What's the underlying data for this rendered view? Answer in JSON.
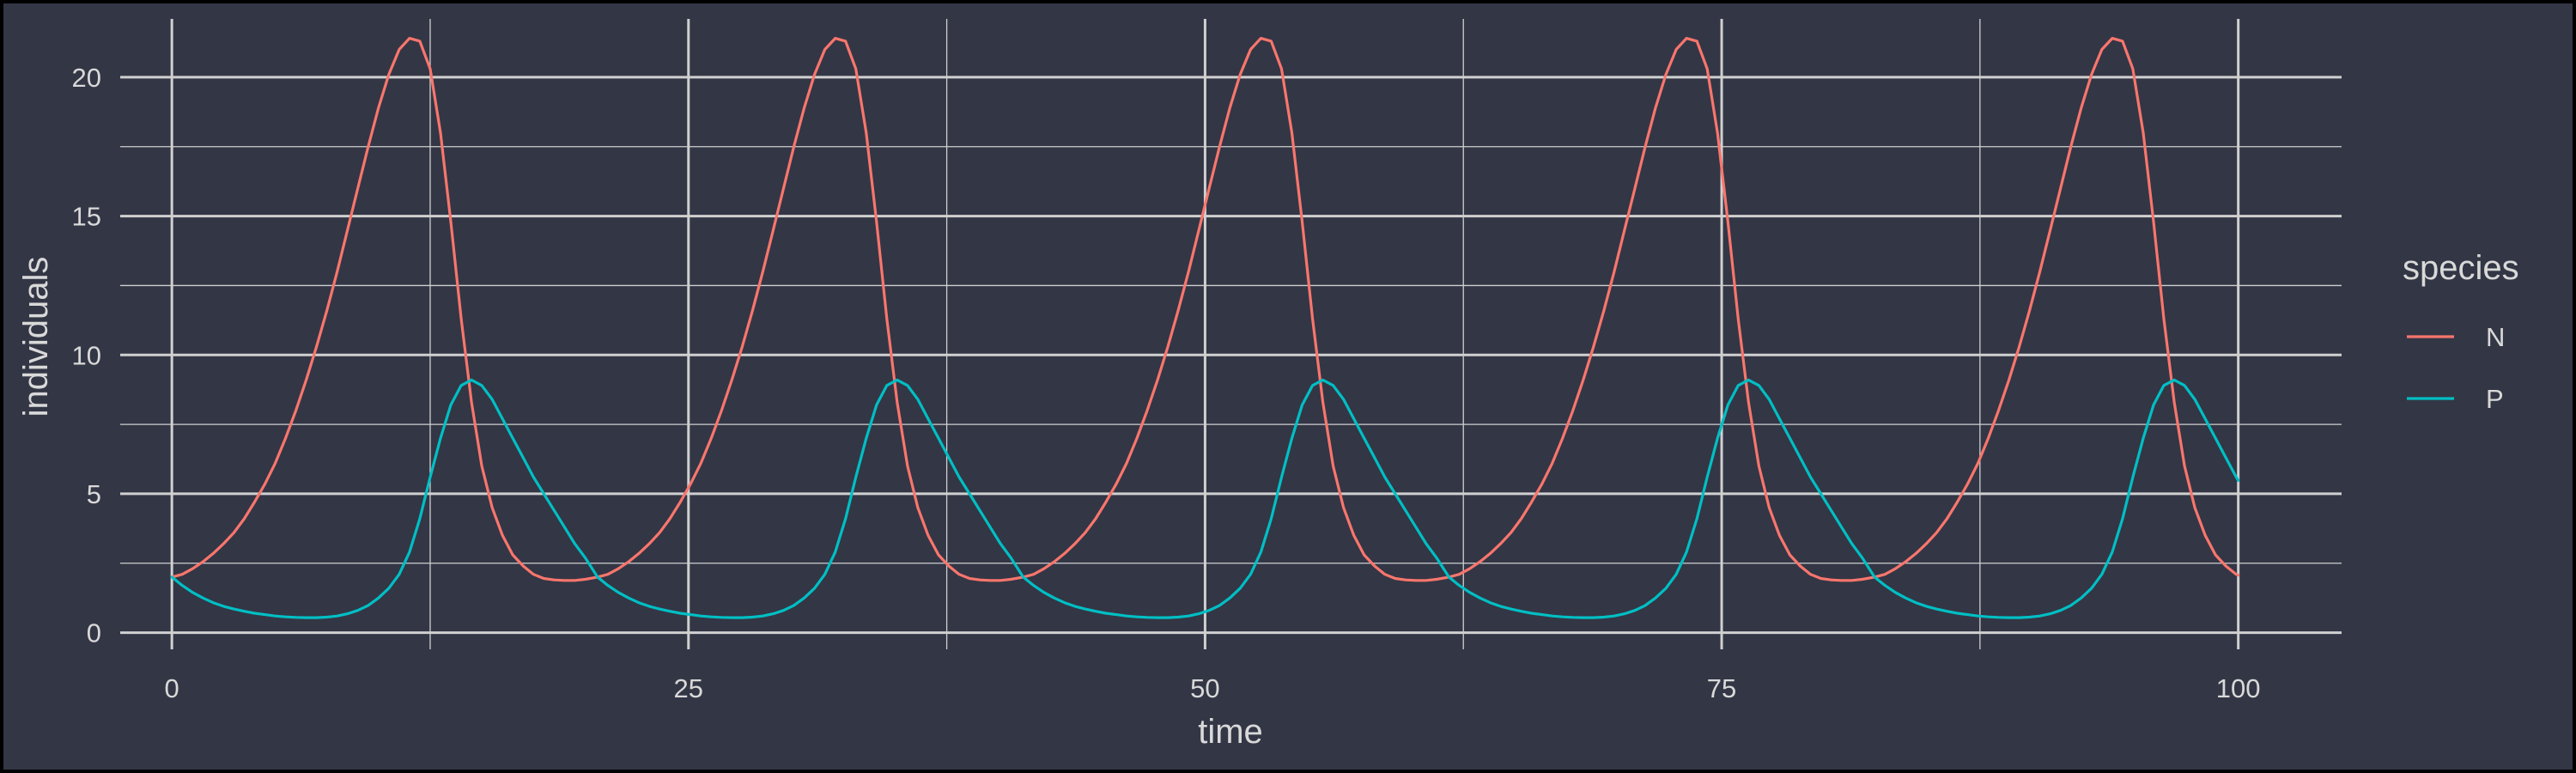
{
  "chart_data": {
    "type": "line",
    "xlabel": "time",
    "ylabel": "individuals",
    "xlim": [
      -2.5,
      105
    ],
    "ylim": [
      -0.6,
      22.1
    ],
    "x_ticks": [
      0,
      25,
      50,
      75,
      100
    ],
    "x_tick_labels": [
      "0",
      "25",
      "50",
      "75",
      "100"
    ],
    "x_minor_ticks": [
      12.5,
      37.5,
      62.5,
      87.5
    ],
    "y_ticks": [
      0,
      5,
      10,
      15,
      20
    ],
    "y_tick_labels": [
      "0",
      "5",
      "10",
      "15",
      "20"
    ],
    "y_minor_ticks": [
      2.5,
      7.5,
      12.5,
      17.5
    ],
    "grid": true,
    "legend": {
      "title": "species",
      "position": "right"
    },
    "series": [
      {
        "name": "N",
        "color": "#f8766d",
        "period": 20.6,
        "x": [
          0,
          0.5,
          1,
          1.5,
          2,
          2.5,
          3,
          3.5,
          4,
          4.5,
          5,
          5.5,
          6,
          6.5,
          7,
          7.5,
          8,
          8.5,
          9,
          9.5,
          10,
          10.5,
          11,
          11.5,
          12,
          12.5,
          13,
          13.5,
          14,
          14.5,
          15,
          15.5,
          16,
          16.5,
          17,
          17.5,
          18,
          18.5,
          19,
          19.5,
          20,
          20.6
        ],
        "values": [
          2.0,
          2.1,
          2.3,
          2.55,
          2.85,
          3.2,
          3.6,
          4.1,
          4.7,
          5.35,
          6.1,
          7.0,
          8.0,
          9.1,
          10.3,
          11.6,
          13.0,
          14.5,
          16.0,
          17.5,
          18.9,
          20.1,
          21.0,
          21.4,
          21.3,
          20.3,
          18.0,
          14.8,
          11.3,
          8.3,
          6.0,
          4.5,
          3.5,
          2.8,
          2.4,
          2.1,
          1.95,
          1.9,
          1.88,
          1.88,
          1.92,
          2.0
        ]
      },
      {
        "name": "P",
        "color": "#00bfc4",
        "period": 20.6,
        "x": [
          0,
          0.5,
          1,
          1.5,
          2,
          2.5,
          3,
          3.5,
          4,
          4.5,
          5,
          5.5,
          6,
          6.5,
          7,
          7.5,
          8,
          8.5,
          9,
          9.5,
          10,
          10.5,
          11,
          11.5,
          12,
          12.5,
          13,
          13.5,
          14,
          14.5,
          15,
          15.5,
          16,
          16.5,
          17,
          17.5,
          18,
          18.5,
          19,
          19.5,
          20,
          20.6
        ],
        "values": [
          2.0,
          1.7,
          1.45,
          1.25,
          1.08,
          0.95,
          0.85,
          0.77,
          0.7,
          0.65,
          0.6,
          0.57,
          0.55,
          0.54,
          0.54,
          0.56,
          0.6,
          0.68,
          0.8,
          0.98,
          1.25,
          1.6,
          2.1,
          2.9,
          4.1,
          5.6,
          7.0,
          8.2,
          8.9,
          9.1,
          8.9,
          8.4,
          7.7,
          7.0,
          6.3,
          5.6,
          5.0,
          4.4,
          3.8,
          3.2,
          2.7,
          2.0
        ]
      }
    ]
  }
}
